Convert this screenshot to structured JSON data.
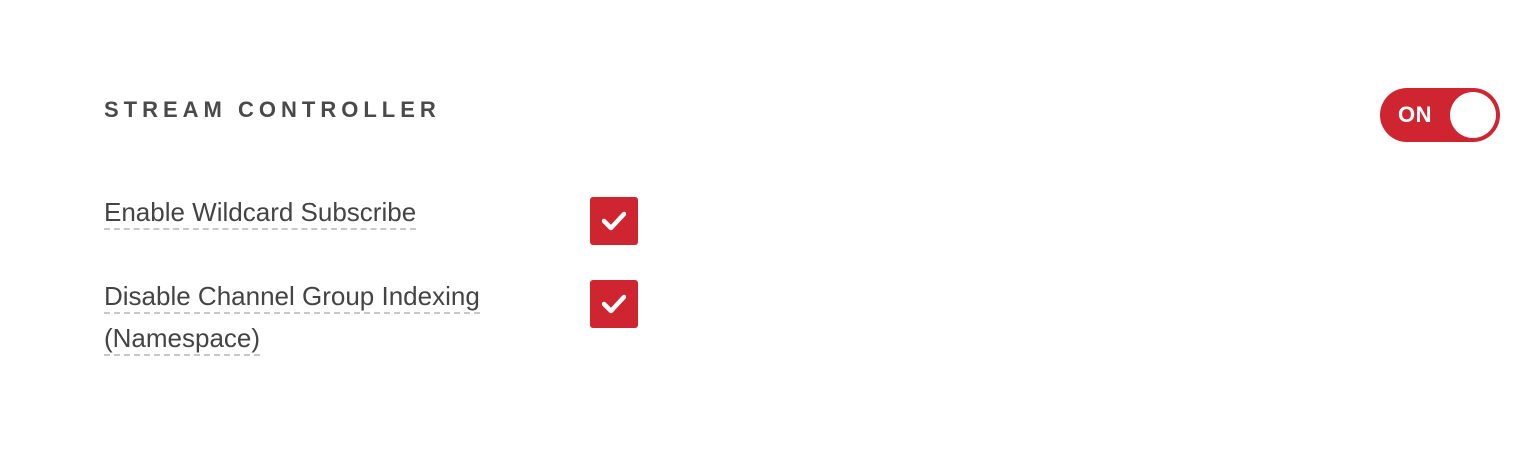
{
  "section": {
    "title": "STREAM CONTROLLER",
    "toggle": {
      "state_label": "ON",
      "on": true,
      "color": "#cf2530"
    }
  },
  "options": [
    {
      "label": "Enable Wildcard Subscribe",
      "checked": true,
      "icon": "checkmark-icon"
    },
    {
      "label": "Disable Channel Group Indexing (Namespace)",
      "checked": true,
      "icon": "checkmark-icon"
    }
  ],
  "colors": {
    "accent": "#cf2530",
    "text": "#444444",
    "dashed_underline": "#c8c8c8"
  }
}
